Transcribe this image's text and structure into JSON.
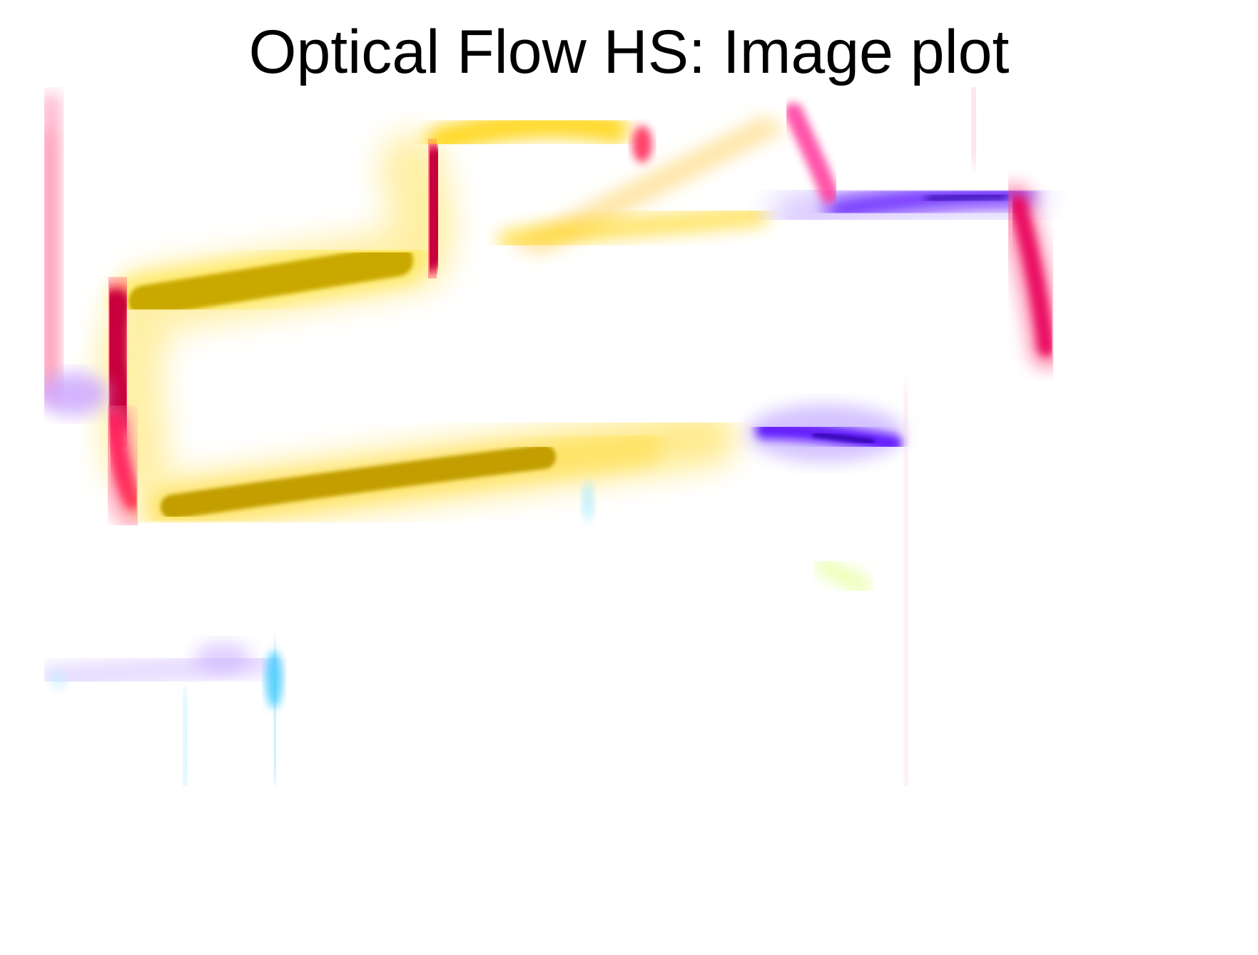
{
  "figure": {
    "title": "Optical Flow HS: Image plot"
  },
  "colors": {
    "background": "#ffffff",
    "title_text": "#000000",
    "dark_yellow": "#c9a800",
    "yellow": "#ffd200",
    "red": "#d4003a",
    "magenta": "#ff2f7a",
    "pink": "#ff6b9a",
    "violet": "#6a10ff",
    "purple_haze": "#c9a2ff",
    "cyan": "#38c9ff",
    "lime": "#c8ff30"
  },
  "image": {
    "name": "optical-flow-color-coded-field",
    "color_coding": "flow direction as hue, magnitude as saturation"
  }
}
